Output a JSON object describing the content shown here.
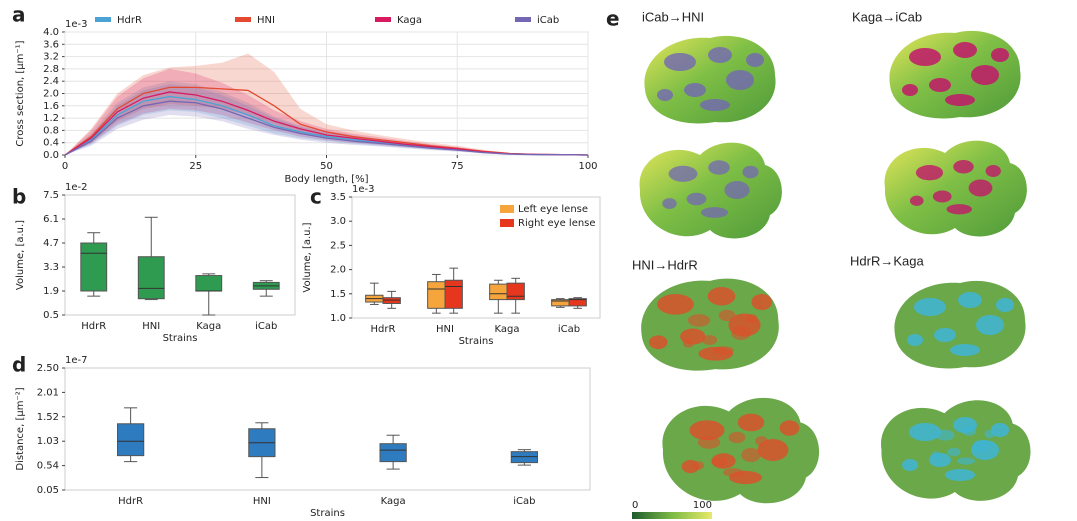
{
  "chart_data": [
    {
      "type": "line",
      "panel": "a",
      "offset": "1e-3",
      "xlabel": "Body length, [%]",
      "ylabel": "Cross section, [μm⁻¹]",
      "x": [
        0,
        5,
        10,
        15,
        20,
        25,
        30,
        35,
        40,
        45,
        50,
        55,
        60,
        65,
        70,
        75,
        80,
        85,
        90,
        95,
        100
      ],
      "xlim": [
        0,
        100
      ],
      "xticks": [
        0,
        25,
        50,
        75,
        100
      ],
      "ylim": [
        0,
        4
      ],
      "yticks": [
        {
          "value": 0,
          "label": "0.0"
        },
        0.4,
        0.8,
        1.2,
        1.6,
        {
          "value": 2,
          "label": "2.0"
        },
        2.4,
        2.8,
        3.2,
        3.6,
        {
          "value": 4,
          "label": "4.0"
        }
      ],
      "grid": true,
      "legend": "top",
      "series": [
        {
          "name": "HdrR",
          "color": "#4aa3d4",
          "values": [
            0,
            0.5,
            1.3,
            1.75,
            1.9,
            1.8,
            1.6,
            1.3,
            0.95,
            0.75,
            0.6,
            0.5,
            0.4,
            0.32,
            0.25,
            0.18,
            0.1,
            0.04,
            0.02,
            0.01,
            0
          ],
          "lower": [
            0,
            0.35,
            0.95,
            1.3,
            1.45,
            1.4,
            1.2,
            0.95,
            0.7,
            0.55,
            0.45,
            0.37,
            0.3,
            0.24,
            0.18,
            0.13,
            0.07,
            0.03,
            0.01,
            0,
            0
          ],
          "upper": [
            0,
            0.7,
            1.7,
            2.2,
            2.4,
            2.3,
            2.05,
            1.7,
            1.25,
            0.95,
            0.78,
            0.65,
            0.52,
            0.42,
            0.33,
            0.24,
            0.14,
            0.06,
            0.03,
            0.01,
            0
          ]
        },
        {
          "name": "HNI",
          "color": "#e5492f",
          "values": [
            0,
            0.6,
            1.5,
            2.0,
            2.2,
            2.2,
            2.15,
            2.1,
            1.6,
            1.0,
            0.75,
            0.6,
            0.5,
            0.4,
            0.3,
            0.22,
            0.12,
            0.05,
            0.02,
            0.01,
            0
          ],
          "lower": [
            0,
            0.4,
            1.1,
            1.5,
            1.65,
            1.6,
            1.5,
            1.3,
            1.0,
            0.7,
            0.55,
            0.45,
            0.37,
            0.3,
            0.22,
            0.16,
            0.08,
            0.03,
            0.01,
            0,
            0
          ],
          "upper": [
            0,
            0.85,
            2.0,
            2.6,
            2.85,
            2.9,
            3.0,
            3.3,
            2.7,
            1.5,
            1.0,
            0.8,
            0.65,
            0.52,
            0.4,
            0.3,
            0.17,
            0.07,
            0.03,
            0.01,
            0
          ]
        },
        {
          "name": "Kaga",
          "color": "#d81b60",
          "values": [
            0,
            0.55,
            1.4,
            1.85,
            2.05,
            1.95,
            1.75,
            1.45,
            1.1,
            0.85,
            0.65,
            0.55,
            0.45,
            0.35,
            0.27,
            0.2,
            0.1,
            0.04,
            0.02,
            0.01,
            0
          ],
          "lower": [
            0,
            0.38,
            1.0,
            1.35,
            1.5,
            1.45,
            1.3,
            1.05,
            0.8,
            0.6,
            0.48,
            0.4,
            0.33,
            0.26,
            0.2,
            0.14,
            0.07,
            0.03,
            0.01,
            0,
            0
          ],
          "upper": [
            0,
            0.8,
            1.9,
            2.5,
            2.8,
            2.65,
            2.35,
            1.95,
            1.45,
            1.1,
            0.85,
            0.7,
            0.58,
            0.46,
            0.35,
            0.26,
            0.14,
            0.06,
            0.03,
            0.01,
            0
          ]
        },
        {
          "name": "iCab",
          "color": "#7468b4",
          "values": [
            0,
            0.45,
            1.2,
            1.6,
            1.75,
            1.7,
            1.5,
            1.2,
            0.9,
            0.7,
            0.55,
            0.45,
            0.38,
            0.3,
            0.22,
            0.16,
            0.08,
            0.03,
            0.01,
            0.01,
            0
          ],
          "lower": [
            0,
            0.3,
            0.85,
            1.15,
            1.3,
            1.25,
            1.1,
            0.85,
            0.65,
            0.5,
            0.4,
            0.33,
            0.28,
            0.22,
            0.16,
            0.11,
            0.05,
            0.02,
            0.01,
            0,
            0
          ],
          "upper": [
            0,
            0.62,
            1.6,
            2.1,
            2.3,
            2.2,
            1.95,
            1.6,
            1.2,
            0.92,
            0.72,
            0.6,
            0.5,
            0.4,
            0.3,
            0.22,
            0.12,
            0.05,
            0.02,
            0.01,
            0
          ]
        }
      ]
    },
    {
      "type": "box",
      "panel": "b",
      "offset": "1e-2",
      "xlabel": "Strains",
      "ylabel": "Volume, [a.u.]",
      "categories": [
        "HdrR",
        "HNI",
        "Kaga",
        "iCab"
      ],
      "ylim": [
        0.5,
        7.5
      ],
      "yticks": [
        0.5,
        1.9,
        3.3,
        4.7,
        6.1,
        7.5
      ],
      "grid": false,
      "series": [
        {
          "color": "#2e9b50",
          "whislo": [
            1.6,
            1.4,
            0.5,
            1.6
          ],
          "q1": [
            1.9,
            1.45,
            1.9,
            2.0
          ],
          "median": [
            4.1,
            2.05,
            1.9,
            2.2
          ],
          "q3": [
            4.7,
            3.9,
            2.8,
            2.4
          ],
          "whishi": [
            5.3,
            6.2,
            2.9,
            2.5
          ]
        }
      ]
    },
    {
      "type": "box",
      "panel": "c",
      "offset": "1e-3",
      "xlabel": "Strains",
      "ylabel": "Volume, [a.u.]",
      "categories": [
        "HdrR",
        "HNI",
        "Kaga",
        "iCab"
      ],
      "ylim": [
        1,
        3.5
      ],
      "yticks": [
        {
          "value": 1,
          "label": "1.0"
        },
        1.5,
        {
          "value": 2,
          "label": "2.0"
        },
        2.5,
        {
          "value": 3,
          "label": "3.0"
        },
        3.5
      ],
      "grid": false,
      "legend": "upper right",
      "series": [
        {
          "name": "Left eye lense",
          "color": "#f6a53c",
          "whislo": [
            1.28,
            1.1,
            1.1,
            1.22
          ],
          "q1": [
            1.33,
            1.2,
            1.38,
            1.25
          ],
          "median": [
            1.4,
            1.6,
            1.5,
            1.35
          ],
          "q3": [
            1.47,
            1.75,
            1.7,
            1.38
          ],
          "whishi": [
            1.72,
            1.9,
            1.78,
            1.4
          ]
        },
        {
          "name": "Right eye lense",
          "color": "#e6361d",
          "whislo": [
            1.2,
            1.1,
            1.1,
            1.2
          ],
          "q1": [
            1.3,
            1.2,
            1.38,
            1.25
          ],
          "median": [
            1.37,
            1.65,
            1.45,
            1.38
          ],
          "q3": [
            1.42,
            1.78,
            1.72,
            1.4
          ],
          "whishi": [
            1.55,
            2.03,
            1.82,
            1.42
          ]
        }
      ]
    },
    {
      "type": "box",
      "panel": "d",
      "offset": "1e-7",
      "xlabel": "Strains",
      "ylabel": "Distance, [μm⁻²]",
      "categories": [
        "HdrR",
        "HNI",
        "Kaga",
        "iCab"
      ],
      "ylim": [
        0.05,
        2.5
      ],
      "yticks": [
        0.05,
        0.54,
        1.03,
        1.52,
        2.01,
        {
          "value": 2.5,
          "label": "2.50"
        }
      ],
      "grid": false,
      "series": [
        {
          "color": "#2f7bbf",
          "whislo": [
            0.62,
            0.3,
            0.47,
            0.55
          ],
          "q1": [
            0.74,
            0.72,
            0.62,
            0.6
          ],
          "median": [
            1.03,
            1.0,
            0.85,
            0.72
          ],
          "q3": [
            1.38,
            1.28,
            0.98,
            0.82
          ],
          "whishi": [
            1.7,
            1.4,
            1.15,
            0.86
          ]
        }
      ]
    }
  ],
  "panel_e": {
    "panel": "e",
    "comparisons": [
      "iCab→HNI",
      "Kaga→iCab",
      "HNI→HdrR",
      "HdrR→Kaga"
    ],
    "colorbar_ticks": [
      0,
      100
    ]
  }
}
